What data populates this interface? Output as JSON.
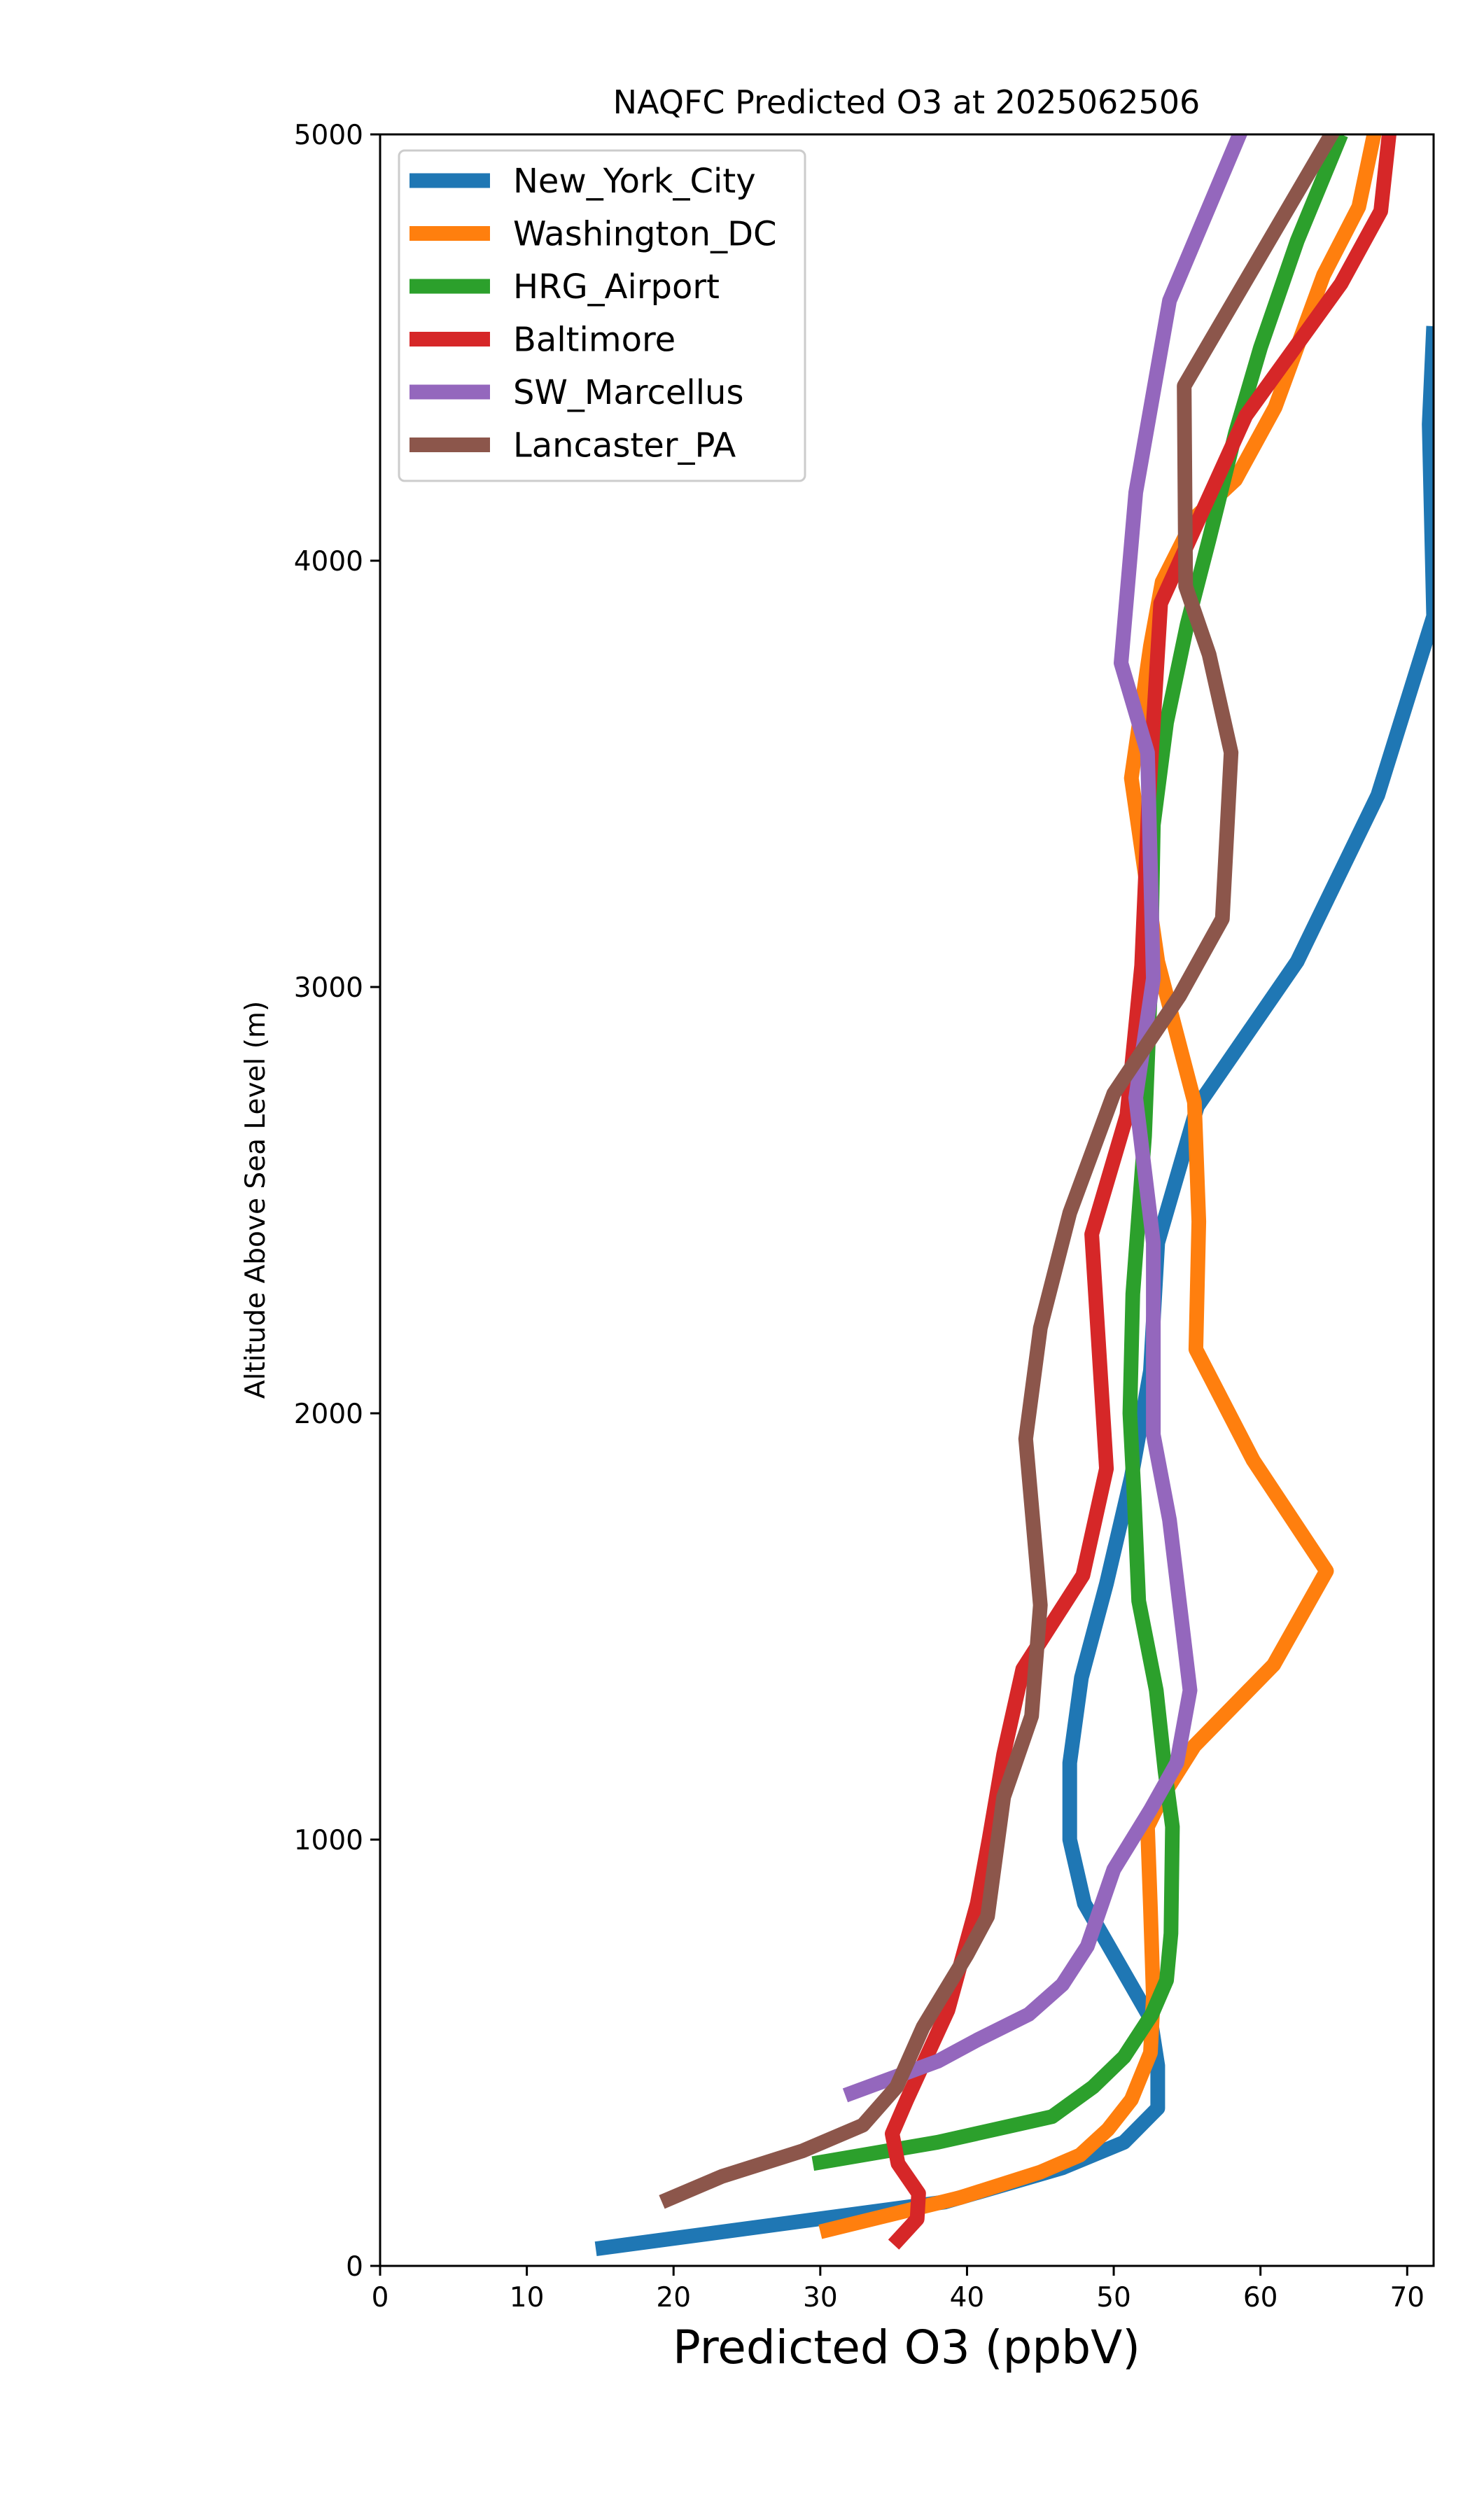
{
  "chart_data": {
    "type": "line",
    "title": "NAQFC Predicted O3 at 2025062506",
    "xlabel": "Predicted O3 (ppbV)",
    "ylabel": "Altitude Above Sea Level (m)",
    "xlim": [
      0,
      71.8
    ],
    "ylim": [
      0,
      5000
    ],
    "xticks": [
      0,
      10,
      20,
      30,
      40,
      50,
      60,
      70
    ],
    "yticks": [
      0,
      1000,
      2000,
      3000,
      4000,
      5000
    ],
    "grid": false,
    "legend_position": "upper left",
    "series": [
      {
        "name": "New_York_City",
        "color": "#1f77b4",
        "points": [
          [
            14.7,
            40
          ],
          [
            38.5,
            150
          ],
          [
            46.5,
            230
          ],
          [
            50.7,
            290
          ],
          [
            53.0,
            370
          ],
          [
            53.0,
            470
          ],
          [
            52.5,
            580
          ],
          [
            48.0,
            850
          ],
          [
            47.0,
            1000
          ],
          [
            47.0,
            1180
          ],
          [
            47.8,
            1380
          ],
          [
            49.5,
            1600
          ],
          [
            51.2,
            1850
          ],
          [
            52.5,
            2100
          ],
          [
            53.0,
            2400
          ],
          [
            55.7,
            2720
          ],
          [
            62.5,
            3060
          ],
          [
            68.0,
            3450
          ],
          [
            71.8,
            3870
          ],
          [
            71.5,
            4320
          ],
          [
            71.8,
            4550
          ]
        ]
      },
      {
        "name": "Washington_DC",
        "color": "#ff7f0e",
        "points": [
          [
            30.0,
            80
          ],
          [
            39.5,
            160
          ],
          [
            45.0,
            220
          ],
          [
            47.7,
            260
          ],
          [
            49.6,
            320
          ],
          [
            51.2,
            390
          ],
          [
            52.5,
            500
          ],
          [
            52.7,
            630
          ],
          [
            52.5,
            840
          ],
          [
            52.3,
            1030
          ],
          [
            53.3,
            1100
          ],
          [
            55.5,
            1220
          ],
          [
            60.9,
            1410
          ],
          [
            64.5,
            1630
          ],
          [
            59.5,
            1890
          ],
          [
            55.6,
            2150
          ],
          [
            55.8,
            2450
          ],
          [
            55.5,
            2730
          ],
          [
            53.0,
            3060
          ],
          [
            51.2,
            3490
          ],
          [
            52.5,
            3800
          ],
          [
            53.3,
            3950
          ],
          [
            55.5,
            4100
          ],
          [
            58.3,
            4190
          ],
          [
            61.0,
            4360
          ],
          [
            64.3,
            4670
          ],
          [
            66.7,
            4830
          ],
          [
            67.8,
            5010
          ]
        ]
      },
      {
        "name": "HRG_Airport",
        "color": "#2ca02c",
        "points": [
          [
            29.5,
            240
          ],
          [
            38.0,
            290
          ],
          [
            45.8,
            350
          ],
          [
            48.6,
            420
          ],
          [
            50.7,
            490
          ],
          [
            52.6,
            590
          ],
          [
            53.6,
            670
          ],
          [
            53.9,
            780
          ],
          [
            54.0,
            1030
          ],
          [
            53.5,
            1160
          ],
          [
            52.9,
            1350
          ],
          [
            51.7,
            1560
          ],
          [
            51.4,
            1800
          ],
          [
            51.1,
            2000
          ],
          [
            51.3,
            2280
          ],
          [
            52.1,
            2650
          ],
          [
            52.5,
            3000
          ],
          [
            52.7,
            3380
          ],
          [
            53.6,
            3620
          ],
          [
            55.0,
            3850
          ],
          [
            56.5,
            4050
          ],
          [
            58.3,
            4300
          ],
          [
            60.0,
            4500
          ],
          [
            62.5,
            4750
          ],
          [
            65.5,
            5000
          ]
        ]
      },
      {
        "name": "Baltimore",
        "color": "#d62728",
        "points": [
          [
            35.0,
            50
          ],
          [
            36.6,
            110
          ],
          [
            36.7,
            170
          ],
          [
            35.3,
            240
          ],
          [
            34.9,
            310
          ],
          [
            35.9,
            390
          ],
          [
            38.7,
            600
          ],
          [
            40.7,
            850
          ],
          [
            41.5,
            1000
          ],
          [
            42.5,
            1200
          ],
          [
            43.8,
            1400
          ],
          [
            47.9,
            1620
          ],
          [
            49.5,
            1870
          ],
          [
            48.5,
            2420
          ],
          [
            50.9,
            2700
          ],
          [
            51.9,
            3050
          ],
          [
            52.4,
            3450
          ],
          [
            53.2,
            3900
          ],
          [
            59.0,
            4340
          ],
          [
            65.5,
            4650
          ],
          [
            68.2,
            4820
          ],
          [
            68.8,
            5010
          ]
        ]
      },
      {
        "name": "SW_Marcellus",
        "color": "#9467bd",
        "points": [
          [
            31.7,
            400
          ],
          [
            38.0,
            480
          ],
          [
            40.7,
            530
          ],
          [
            44.2,
            590
          ],
          [
            46.5,
            660
          ],
          [
            48.2,
            750
          ],
          [
            50.0,
            930
          ],
          [
            52.5,
            1070
          ],
          [
            54.3,
            1180
          ],
          [
            55.2,
            1350
          ],
          [
            54.5,
            1550
          ],
          [
            53.8,
            1750
          ],
          [
            52.7,
            1950
          ],
          [
            52.7,
            2400
          ],
          [
            51.5,
            2740
          ],
          [
            52.7,
            3020
          ],
          [
            52.3,
            3550
          ],
          [
            50.5,
            3760
          ],
          [
            51.5,
            4160
          ],
          [
            53.8,
            4610
          ],
          [
            58.7,
            5010
          ]
        ]
      },
      {
        "name": "Lancaster_PA",
        "color": "#8c564b",
        "points": [
          [
            19.2,
            150
          ],
          [
            23.3,
            210
          ],
          [
            28.8,
            270
          ],
          [
            32.9,
            330
          ],
          [
            35.2,
            420
          ],
          [
            37.0,
            560
          ],
          [
            40.0,
            730
          ],
          [
            41.4,
            820
          ],
          [
            42.5,
            1100
          ],
          [
            44.4,
            1290
          ],
          [
            45.0,
            1550
          ],
          [
            44.0,
            1940
          ],
          [
            45.0,
            2200
          ],
          [
            47.0,
            2470
          ],
          [
            50.0,
            2750
          ],
          [
            54.5,
            2980
          ],
          [
            57.4,
            3160
          ],
          [
            58.0,
            3550
          ],
          [
            56.5,
            3780
          ],
          [
            54.9,
            3940
          ],
          [
            54.8,
            4410
          ],
          [
            65.0,
            5010
          ]
        ]
      }
    ]
  }
}
